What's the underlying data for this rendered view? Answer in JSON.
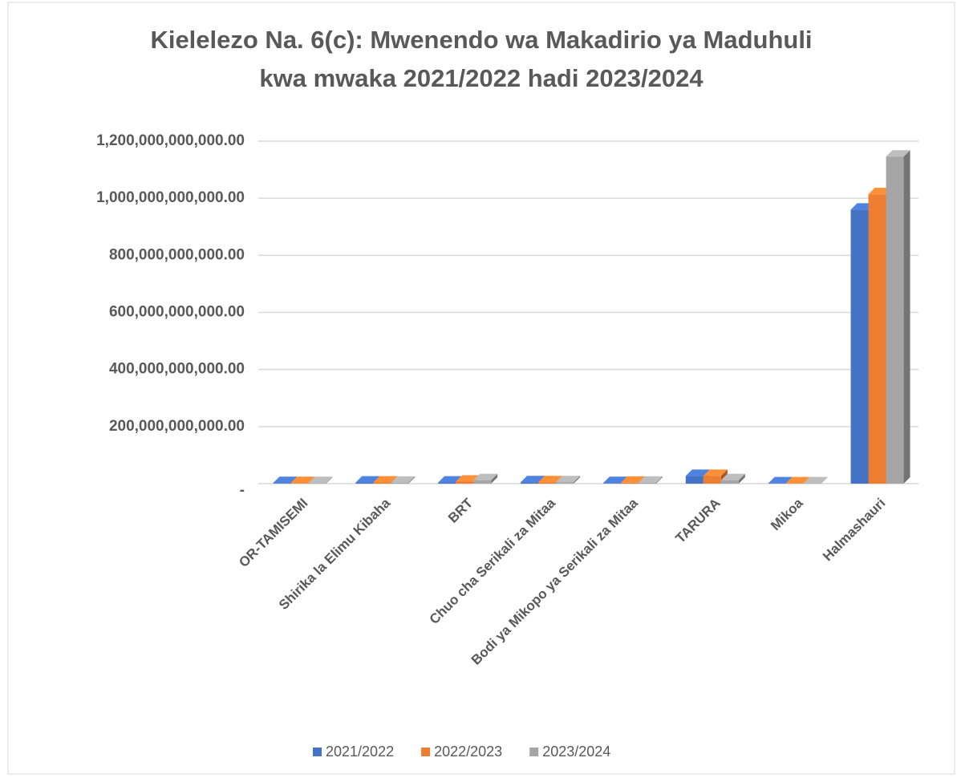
{
  "chart_data": {
    "type": "bar3d",
    "title": [
      "Kielelezo Na. 6(c): Mwenendo wa Makadirio ya Maduhuli",
      "kwa mwaka 2021/2022 hadi 2023/2024"
    ],
    "categories": [
      "OR-TAMISEMI",
      "Shirika la Elimu Kibaha",
      "BRT",
      "Chuo cha Serikali za Mitaa",
      "Bodi ya Mikopo ya Serikali za Mitaa",
      "TARURA",
      "Mikoa",
      "Halmashauri"
    ],
    "series": [
      {
        "name": "2021/2022",
        "color": "#4472c4",
        "values": [
          2000000000,
          4000000000,
          4000000000,
          5000000000,
          2000000000,
          27000000000,
          1000000000,
          960000000000
        ]
      },
      {
        "name": "2022/2023",
        "color": "#ed7d31",
        "values": [
          2000000000,
          4000000000,
          7000000000,
          5000000000,
          3000000000,
          27000000000,
          1000000000,
          1014000000000
        ]
      },
      {
        "name": "2023/2024",
        "color": "#a5a5a5",
        "values": [
          2000000000,
          3000000000,
          12000000000,
          5000000000,
          3000000000,
          12000000000,
          1000000000,
          1146000000000
        ]
      }
    ],
    "ylim": [
      0,
      1200000000000
    ],
    "yticks": [
      {
        "value": 0,
        "label": "-"
      },
      {
        "value": 200000000000,
        "label": "200,000,000,000.00"
      },
      {
        "value": 400000000000,
        "label": "400,000,000,000.00"
      },
      {
        "value": 600000000000,
        "label": "600,000,000,000.00"
      },
      {
        "value": 800000000000,
        "label": "800,000,000,000.00"
      },
      {
        "value": 1000000000000,
        "label": "1,000,000,000,000.00"
      },
      {
        "value": 1200000000000,
        "label": "1,200,000,000,000.00"
      }
    ],
    "grid": true,
    "legend": "bottom"
  }
}
